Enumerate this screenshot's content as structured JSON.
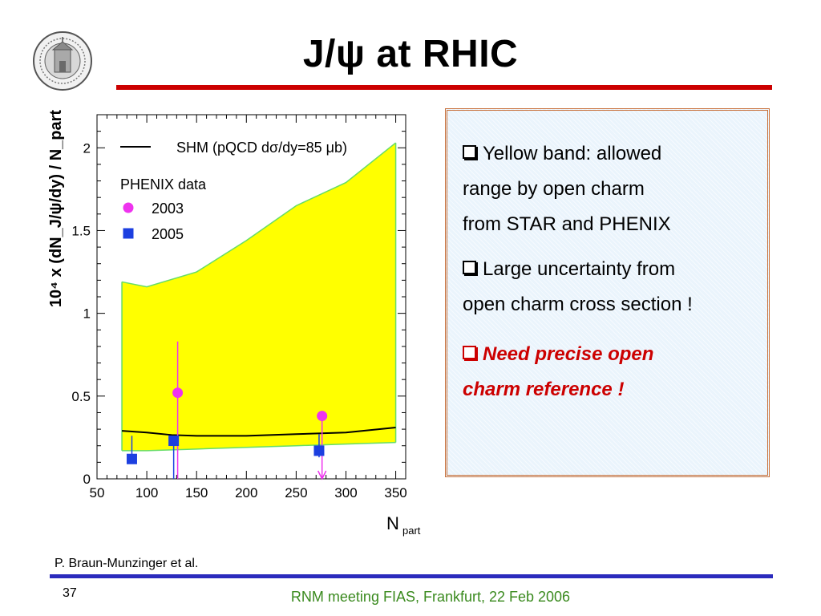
{
  "slide": {
    "title": "J/ψ at RHIC",
    "credit": "P. Braun-Munzinger et al.",
    "page_number": "37",
    "footer": "RNM meeting FIAS, Frankfurt, 22 Feb 2006",
    "colors": {
      "title_rule": "#cc0000",
      "footer_rule": "#2b2bbd",
      "footer_text": "#3a8a1e",
      "highlight_text": "#cc0000"
    }
  },
  "seal": {
    "icon": "university-seal-icon"
  },
  "bullets": [
    {
      "lines": [
        "Yellow band:  allowed",
        "range by open charm",
        "from STAR and PHENIX"
      ]
    },
    {
      "lines": [
        "Large uncertainty from",
        "open charm cross section !"
      ]
    },
    {
      "lines": [
        "Need precise open",
        "charm reference !"
      ]
    }
  ],
  "chart_data": {
    "type": "scatter",
    "xlabel": "N",
    "xlabel_sub": "part",
    "ylabel": "10⁴ x (dN_J/ψ/dy) / N_part",
    "xlim": [
      50,
      360
    ],
    "ylim": [
      0,
      2.2
    ],
    "xticks": [
      50,
      100,
      150,
      200,
      250,
      300,
      350
    ],
    "yticks": [
      0,
      0.5,
      1,
      1.5,
      2
    ],
    "ytick_labels": [
      "0",
      "0.5",
      "1",
      "1.5",
      "2"
    ],
    "legend": {
      "position": "top-left",
      "model_label": "SHM (pQCD dσ/dy=85 μb)",
      "data_header": "PHENIX data"
    },
    "band": {
      "color": "#ffff00",
      "edge_color": "#66dd66",
      "x": [
        75,
        100,
        150,
        200,
        250,
        300,
        350
      ],
      "upper": [
        1.19,
        1.16,
        1.25,
        1.44,
        1.65,
        1.79,
        2.03
      ],
      "lower": [
        0.17,
        0.17,
        0.18,
        0.19,
        0.2,
        0.21,
        0.22
      ]
    },
    "model_curve": {
      "name": "SHM (pQCD dσ/dy=85 μb)",
      "color": "#000000",
      "x": [
        75,
        100,
        125,
        150,
        200,
        250,
        300,
        350
      ],
      "y": [
        0.29,
        0.28,
        0.265,
        0.26,
        0.26,
        0.27,
        0.28,
        0.31
      ]
    },
    "series": [
      {
        "name": "2003",
        "marker": "circle",
        "color": "#ee33ee",
        "points": [
          {
            "x": 131,
            "y": 0.52,
            "err_up": 0.31,
            "err_down": 0.52
          },
          {
            "x": 276,
            "y": 0.38,
            "err_up": 0.0,
            "err_down": 0.38,
            "upper_limit_arrow": true
          }
        ]
      },
      {
        "name": "2005",
        "marker": "square",
        "color": "#1c3fe0",
        "points": [
          {
            "x": 85,
            "y": 0.12,
            "err_up": 0.14,
            "err_down": 0.0
          },
          {
            "x": 127,
            "y": 0.23,
            "err_up": 0.0,
            "err_down": 0.23
          },
          {
            "x": 273,
            "y": 0.17,
            "err_up": 0.1,
            "err_down": 0.04
          }
        ]
      }
    ]
  }
}
